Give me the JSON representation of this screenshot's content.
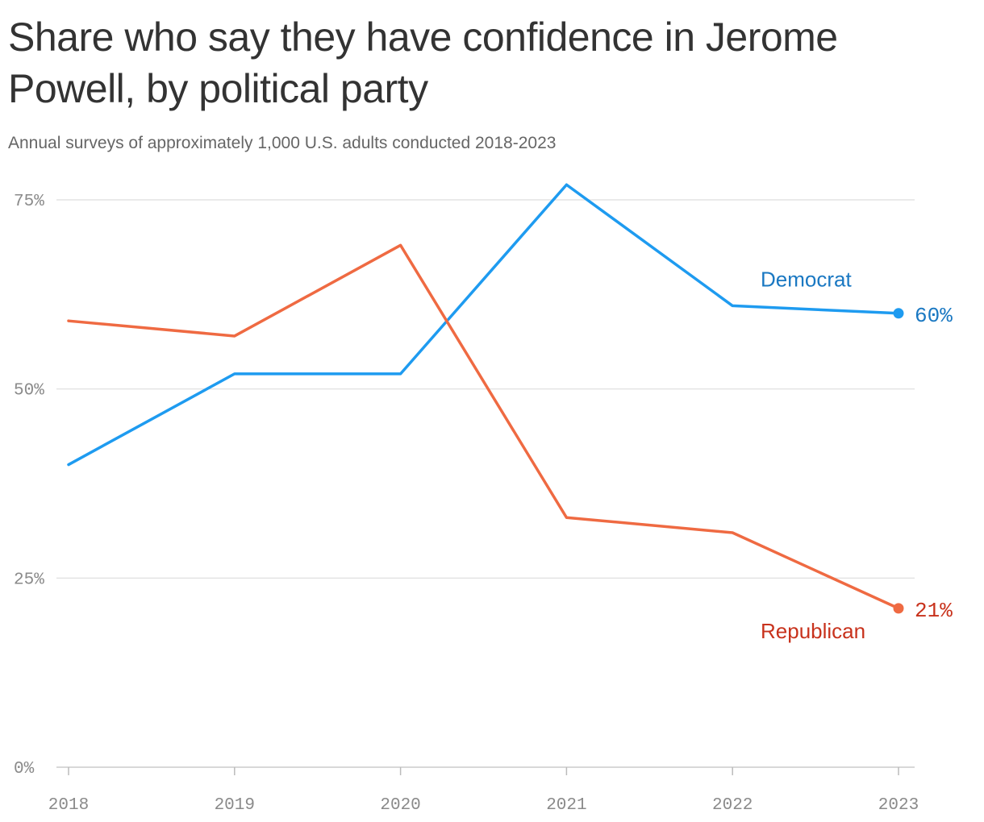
{
  "title": "Share who say they have confidence in Jerome Powell, by political party",
  "subtitle": "Annual surveys of approximately 1,000 U.S. adults conducted 2018-2023",
  "chart_data": {
    "type": "line",
    "x": [
      "2018",
      "2019",
      "2020",
      "2021",
      "2022",
      "2023"
    ],
    "series": [
      {
        "name": "Democrat",
        "values": [
          40,
          52,
          52,
          77,
          61,
          60
        ],
        "color": "#1e9bf0",
        "label_color": "#1a78c2",
        "end_label": "60%"
      },
      {
        "name": "Republican",
        "values": [
          59,
          57,
          69,
          33,
          31,
          21
        ],
        "color": "#ef6a42",
        "label_color": "#c8321c",
        "end_label": "21%"
      }
    ],
    "y_ticks": [
      0,
      25,
      50,
      75
    ],
    "y_tick_labels": [
      "0%",
      "25%",
      "50%",
      "75%"
    ],
    "ylim": [
      0,
      75
    ],
    "grid": true,
    "gridline_color": "#dddddd"
  }
}
